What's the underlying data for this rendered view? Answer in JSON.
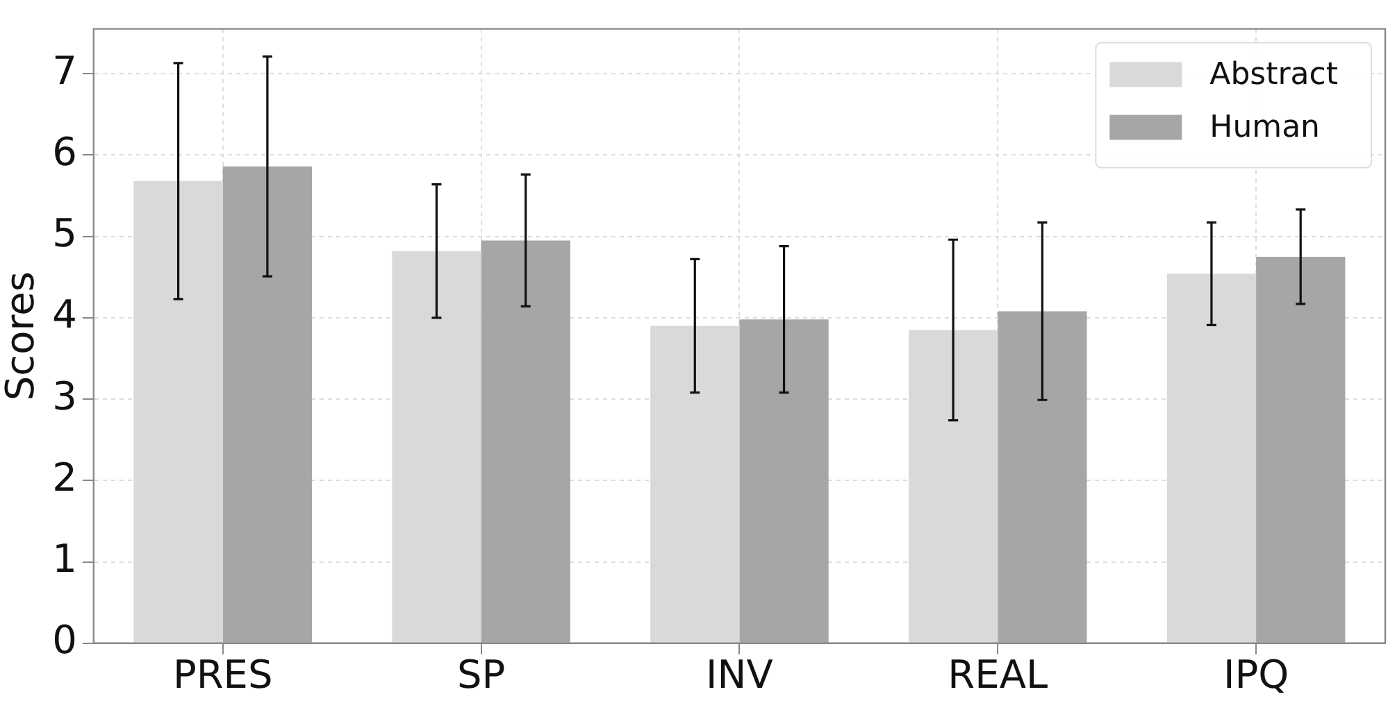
{
  "chart_data": {
    "type": "bar",
    "ylabel": "Scores",
    "categories": [
      "PRES",
      "SP",
      "INV",
      "REAL",
      "IPQ"
    ],
    "series": [
      {
        "name": "Abstract",
        "color": "#d9d9d9",
        "values": [
          5.68,
          4.82,
          3.9,
          3.85,
          4.54
        ],
        "errors": [
          1.45,
          0.82,
          0.82,
          1.11,
          0.63
        ]
      },
      {
        "name": "Human",
        "color": "#a6a6a6",
        "values": [
          5.86,
          4.95,
          3.98,
          4.08,
          4.75
        ],
        "errors": [
          1.35,
          0.81,
          0.9,
          1.09,
          0.58
        ]
      }
    ],
    "ylim": [
      0,
      7.55
    ],
    "yticks": [
      0,
      1,
      2,
      3,
      4,
      5,
      6,
      7
    ],
    "grid": true,
    "legend": "top right"
  }
}
